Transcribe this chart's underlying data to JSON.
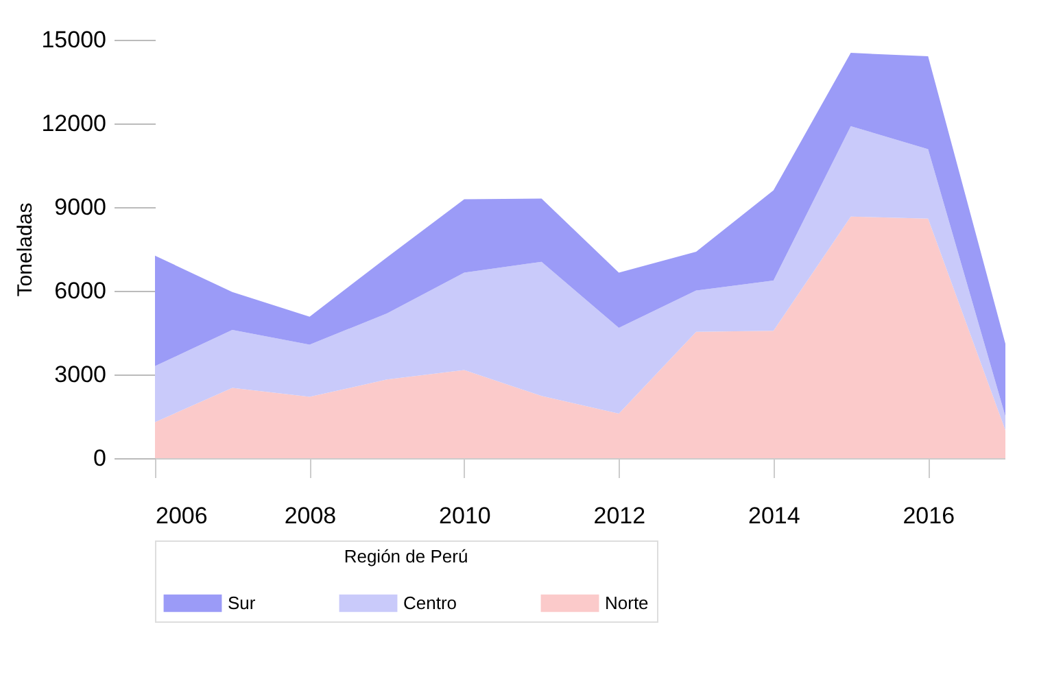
{
  "chart_data": {
    "type": "area",
    "ylabel": "Toneladas",
    "legend_title": "Región de Perú",
    "legend": "bottom",
    "stacked": true,
    "x": [
      2006,
      2007,
      2008,
      2009,
      2010,
      2011,
      2012,
      2013,
      2014,
      2015,
      2016,
      2017
    ],
    "xlim": [
      2006,
      2017
    ],
    "xticks": [
      2006,
      2008,
      2010,
      2012,
      2014,
      2016
    ],
    "ylim": [
      0,
      15000
    ],
    "yticks": [
      0,
      3000,
      6000,
      9000,
      12000,
      15000
    ],
    "series": [
      {
        "name": "Norte",
        "color": "#fbcaca",
        "values": [
          1290,
          2520,
          2200,
          2820,
          3160,
          2230,
          1600,
          4530,
          4570,
          8660,
          8590,
          1000
        ]
      },
      {
        "name": "Centro",
        "color": "#c9cafa",
        "values": [
          2010,
          2080,
          1870,
          2370,
          3490,
          4810,
          3070,
          1480,
          1800,
          3240,
          2490,
          500
        ]
      },
      {
        "name": "Sur",
        "color": "#9b9bf7",
        "values": [
          3960,
          1360,
          1000,
          2010,
          2630,
          2270,
          1980,
          1390,
          3230,
          2630,
          3330,
          2600
        ]
      }
    ]
  }
}
